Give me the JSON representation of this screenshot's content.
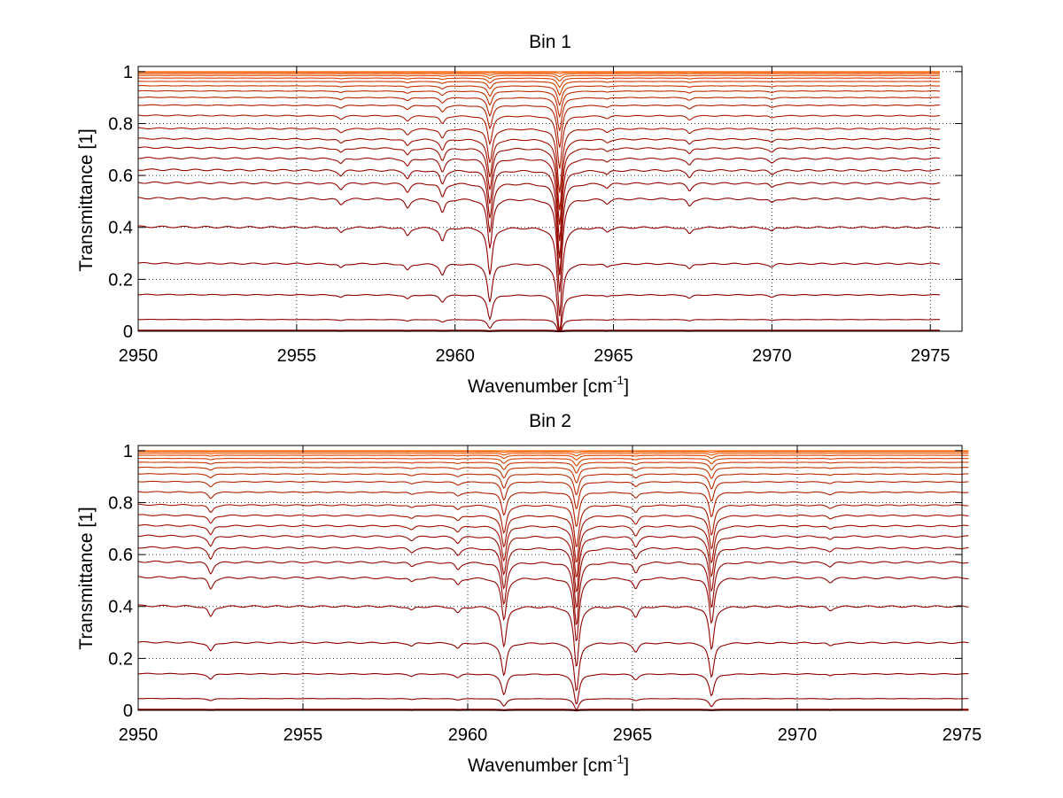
{
  "chart_data": [
    {
      "type": "line",
      "title": "Bin 1",
      "xlabel": "Wavenumber [cm",
      "xlabel_superscript": "-1",
      "xlabel_suffix": "]",
      "ylabel": "Transmittance [1]",
      "xlim": [
        2950,
        2976
      ],
      "ylim": [
        0,
        1.02
      ],
      "xticks": [
        2950,
        2955,
        2960,
        2965,
        2970,
        2975
      ],
      "xtick_labels": [
        "2950",
        "2955",
        "2960",
        "2965",
        "2970",
        "2975"
      ],
      "yticks": [
        0,
        0.2,
        0.4,
        0.6,
        0.8,
        1
      ],
      "ytick_labels": [
        "0",
        "0.2",
        "0.4",
        "0.6",
        "0.8",
        "1"
      ],
      "grid": true,
      "line_colors": [
        "#8b0000",
        "#ff6600"
      ],
      "x_range": [
        2950,
        2975.3
      ],
      "baselines": [
        0.002,
        0.045,
        0.14,
        0.26,
        0.4,
        0.51,
        0.57,
        0.62,
        0.665,
        0.705,
        0.74,
        0.78,
        0.83,
        0.87,
        0.9,
        0.925,
        0.945,
        0.962,
        0.975,
        0.985,
        0.992,
        0.997,
        1.0
      ],
      "absorption_lines": [
        {
          "center": 2956.4,
          "strength": 0.04
        },
        {
          "center": 2958.5,
          "strength": 0.06
        },
        {
          "center": 2959.6,
          "strength": 0.1
        },
        {
          "center": 2961.1,
          "strength": 0.35
        },
        {
          "center": 2963.3,
          "strength": 0.65
        },
        {
          "center": 2964.8,
          "strength": 0.03
        },
        {
          "center": 2967.4,
          "strength": 0.05
        },
        {
          "center": 2970.0,
          "strength": 0.03
        }
      ]
    },
    {
      "type": "line",
      "title": "Bin 2",
      "xlabel": "Wavenumber [cm",
      "xlabel_superscript": "-1",
      "xlabel_suffix": "]",
      "ylabel": "Transmittance [1]",
      "xlim": [
        2950,
        2975
      ],
      "ylim": [
        0,
        1.02
      ],
      "xticks": [
        2950,
        2955,
        2960,
        2965,
        2970,
        2975
      ],
      "xtick_labels": [
        "2950",
        "2955",
        "2960",
        "2965",
        "2970",
        "2975"
      ],
      "yticks": [
        0,
        0.2,
        0.4,
        0.6,
        0.8,
        1
      ],
      "ytick_labels": [
        "0",
        "0.2",
        "0.4",
        "0.6",
        "0.8",
        "1"
      ],
      "grid": true,
      "line_colors": [
        "#8b0000",
        "#ff6600"
      ],
      "x_range": [
        2950,
        2975.2
      ],
      "baselines": [
        0.002,
        0.045,
        0.14,
        0.26,
        0.4,
        0.51,
        0.57,
        0.625,
        0.67,
        0.71,
        0.75,
        0.79,
        0.84,
        0.88,
        0.91,
        0.935,
        0.955,
        0.97,
        0.982,
        0.99,
        0.996,
        1.0
      ],
      "absorption_lines": [
        {
          "center": 2952.2,
          "strength": 0.08
        },
        {
          "center": 2958.3,
          "strength": 0.03
        },
        {
          "center": 2959.7,
          "strength": 0.05
        },
        {
          "center": 2961.1,
          "strength": 0.3
        },
        {
          "center": 2963.3,
          "strength": 0.45
        },
        {
          "center": 2965.1,
          "strength": 0.08
        },
        {
          "center": 2967.4,
          "strength": 0.32
        },
        {
          "center": 2971.0,
          "strength": 0.03
        }
      ]
    }
  ]
}
